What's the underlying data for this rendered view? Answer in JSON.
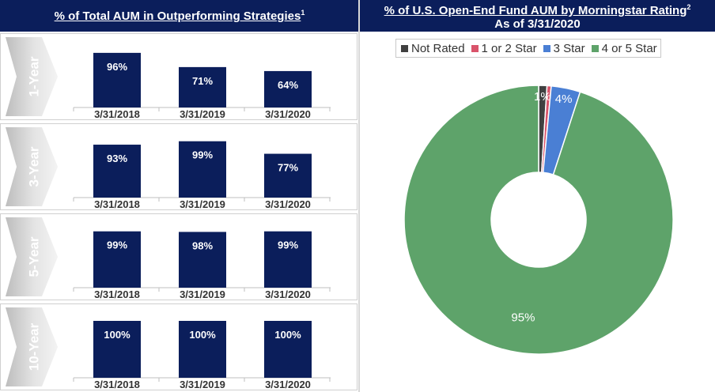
{
  "left_header": {
    "title": "% of Total AUM in Outperforming Strategies",
    "footnote": "1"
  },
  "right_header": {
    "title": "% of U.S. Open-End Fund AUM by Morningstar Rating",
    "footnote": "2",
    "subtitle": "As of 3/31/2020"
  },
  "bar_color": "#0b1e5b",
  "chart_data": [
    {
      "type": "bar",
      "period": "1-Year",
      "categories": [
        "3/31/2018",
        "3/31/2019",
        "3/31/2020"
      ],
      "values": [
        96,
        71,
        64
      ],
      "labels": [
        "96%",
        "71%",
        "64%"
      ],
      "ylim": [
        0,
        100
      ]
    },
    {
      "type": "bar",
      "period": "3-Year",
      "categories": [
        "3/31/2018",
        "3/31/2019",
        "3/31/2020"
      ],
      "values": [
        93,
        99,
        77
      ],
      "labels": [
        "93%",
        "99%",
        "77%"
      ],
      "ylim": [
        0,
        100
      ]
    },
    {
      "type": "bar",
      "period": "5-Year",
      "categories": [
        "3/31/2018",
        "3/31/2019",
        "3/31/2020"
      ],
      "values": [
        99,
        98,
        99
      ],
      "labels": [
        "99%",
        "98%",
        "99%"
      ],
      "ylim": [
        0,
        100
      ]
    },
    {
      "type": "bar",
      "period": "10-Year",
      "categories": [
        "3/31/2018",
        "3/31/2019",
        "3/31/2020"
      ],
      "values": [
        100,
        100,
        100
      ],
      "labels": [
        "100%",
        "100%",
        "100%"
      ],
      "ylim": [
        0,
        100
      ]
    },
    {
      "type": "pie",
      "donut": true,
      "title": "% of U.S. Open-End Fund AUM by Morningstar Rating",
      "subtitle": "As of 3/31/2020",
      "legend_position": "top",
      "slices": [
        {
          "name": "Not Rated",
          "value": 1,
          "label": "1%",
          "color": "#404040"
        },
        {
          "name": "1 or 2 Star",
          "value": 0.5,
          "label": "",
          "color": "#d9536a"
        },
        {
          "name": "3 Star",
          "value": 3.5,
          "label": "4%",
          "color": "#4a7fd4"
        },
        {
          "name": "4 or 5 Star",
          "value": 95,
          "label": "95%",
          "color": "#5ea36a"
        }
      ]
    }
  ]
}
